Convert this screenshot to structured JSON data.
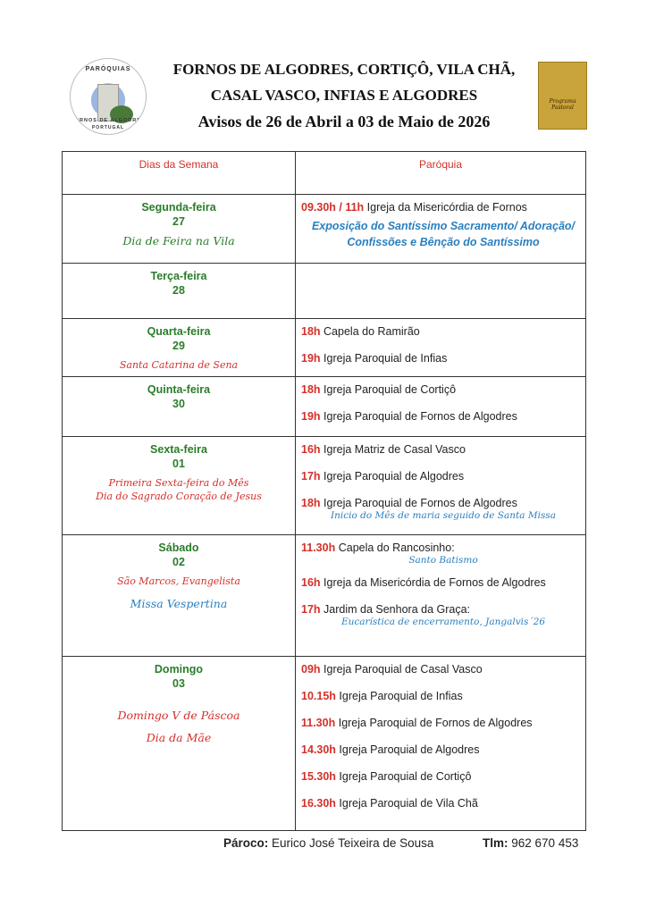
{
  "header": {
    "line1": "FORNOS DE ALGODRES, CORTIÇÔ, VILA CHÃ,",
    "line2": "CASAL VASCO, INFIAS E ALGODRES",
    "line3": "Avisos de 26 de Abril a 03 de Maio de 2026",
    "logo_left_top": "PARÓQUIAS",
    "logo_left_bottom": "FORNOS DE ALGODRES",
    "logo_left_country": "PORTUGAL",
    "logo_right_text": "Programa Pastoral"
  },
  "table": {
    "col_day": "Dias da Semana",
    "col_parish": "Paróquia",
    "rows": [
      {
        "day": "Segunda-feira",
        "num": "27",
        "notes": [
          {
            "text": "Dia de Feira na Vila",
            "color": "green"
          }
        ],
        "entries": [
          {
            "time": "09.30h / 11h",
            "place": "Igreja da Misericórdia de Fornos",
            "sub_bold": "Exposição do Santíssimo Sacramento/ Adoração/ Confissões e Bênção do Santíssimo"
          }
        ]
      },
      {
        "day": "Terça-feira",
        "num": "28",
        "notes": [],
        "entries": []
      },
      {
        "day": "Quarta-feira",
        "num": "29",
        "notes": [
          {
            "text": "Santa Catarina de Sena",
            "color": "red"
          }
        ],
        "entries": [
          {
            "time": "18h",
            "place": "Capela do Ramirão"
          },
          {
            "time": "19h",
            "place": "Igreja Paroquial de Infias"
          }
        ]
      },
      {
        "day": "Quinta-feira",
        "num": "30",
        "notes": [],
        "entries": [
          {
            "time": "18h",
            "place": "Igreja Paroquial de Cortiçô"
          },
          {
            "time": "19h",
            "place": "Igreja Paroquial de Fornos de Algodres"
          }
        ]
      },
      {
        "day": "Sexta-feira",
        "num": "01",
        "notes": [
          {
            "text": "Primeira Sexta-feira do Mês",
            "color": "red"
          },
          {
            "text": "Dia do Sagrado Coração de Jesus",
            "color": "red"
          }
        ],
        "entries": [
          {
            "time": "16h",
            "place": "Igreja Matriz de Casal Vasco"
          },
          {
            "time": "17h",
            "place": "Igreja Paroquial de Algodres"
          },
          {
            "time": "18h",
            "place": "Igreja Paroquial de Fornos de Algodres",
            "sub": "Inicio do Mês de maria seguido de Santa Missa"
          }
        ]
      },
      {
        "day": "Sábado",
        "num": "02",
        "notes": [
          {
            "text": "São Marcos, Evangelista",
            "color": "red"
          },
          {
            "text": "Missa Vespertina",
            "color": "blue"
          }
        ],
        "entries": [
          {
            "time": "11.30h",
            "place": "Capela do Rancosinho:",
            "sub": "Santo Batismo"
          },
          {
            "time": "16h",
            "place": "Igreja da Misericórdia de Fornos de Algodres"
          },
          {
            "time": "17h",
            "place": "Jardim da Senhora da Graça:",
            "sub": "Eucarística de encerramento, Jangalvis´26"
          }
        ]
      },
      {
        "day": "Domingo",
        "num": "03",
        "notes": [
          {
            "text": "Domingo V de Páscoa",
            "color": "red"
          },
          {
            "text": "Dia da Mãe",
            "color": "red"
          }
        ],
        "entries": [
          {
            "time": "09h",
            "place": "Igreja Paroquial de Casal Vasco"
          },
          {
            "time": "10.15h",
            "place": "Igreja Paroquial de Infias"
          },
          {
            "time": "11.30h",
            "place": "Igreja Paroquial de Fornos de Algodres"
          },
          {
            "time": "14.30h",
            "place": "Igreja Paroquial de Algodres"
          },
          {
            "time": "15.30h",
            "place": "Igreja Paroquial de Cortiçô"
          },
          {
            "time": "16.30h",
            "place": "Igreja Paroquial de Vila Chã"
          }
        ]
      }
    ]
  },
  "footer": {
    "priest_label": "Pároco:",
    "priest_name": "Eurico José Teixeira de Sousa",
    "phone_label": "Tlm:",
    "phone": "962 670 453"
  }
}
